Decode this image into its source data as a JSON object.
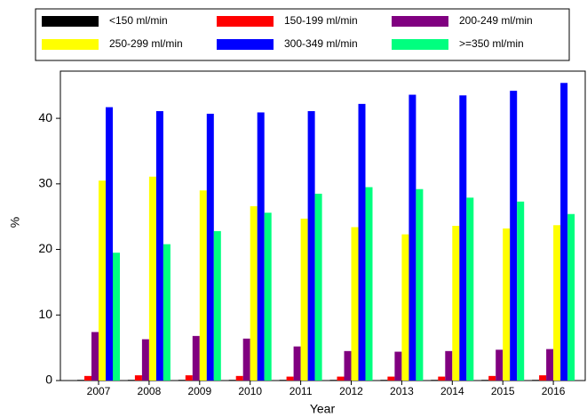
{
  "chart_data": {
    "type": "bar",
    "x_label": "Year",
    "y_label": "%",
    "categories": [
      "2007",
      "2008",
      "2009",
      "2010",
      "2011",
      "2012",
      "2013",
      "2014",
      "2015",
      "2016"
    ],
    "series": [
      {
        "name": "<150 ml/min",
        "color": "#000000",
        "values": [
          0.1,
          0.1,
          0.1,
          0.1,
          0.1,
          0.1,
          0.1,
          0.1,
          0.1,
          0.1
        ]
      },
      {
        "name": "150-199 ml/min",
        "color": "#ff0000",
        "values": [
          0.7,
          0.8,
          0.8,
          0.7,
          0.6,
          0.6,
          0.6,
          0.6,
          0.7,
          0.8
        ]
      },
      {
        "name": "200-249 ml/min",
        "color": "#800080",
        "values": [
          7.4,
          6.3,
          6.8,
          6.4,
          5.2,
          4.5,
          4.4,
          4.5,
          4.7,
          4.8
        ]
      },
      {
        "name": "250-299 ml/min",
        "color": "#ffff00",
        "values": [
          30.5,
          31.1,
          29.0,
          26.6,
          24.7,
          23.4,
          22.3,
          23.6,
          23.2,
          23.7
        ]
      },
      {
        "name": "300-349 ml/min",
        "color": "#0000ff",
        "values": [
          41.7,
          41.1,
          40.7,
          40.9,
          41.1,
          42.2,
          43.6,
          43.5,
          44.2,
          45.4
        ]
      },
      {
        "name": ">=350 ml/min",
        "color": "#00ff7f",
        "values": [
          19.5,
          20.8,
          22.8,
          25.6,
          28.5,
          29.5,
          29.2,
          27.9,
          27.3,
          25.4
        ]
      }
    ],
    "ylim": [
      0,
      47.2
    ],
    "yticks": [
      0,
      10,
      20,
      30,
      40
    ]
  }
}
